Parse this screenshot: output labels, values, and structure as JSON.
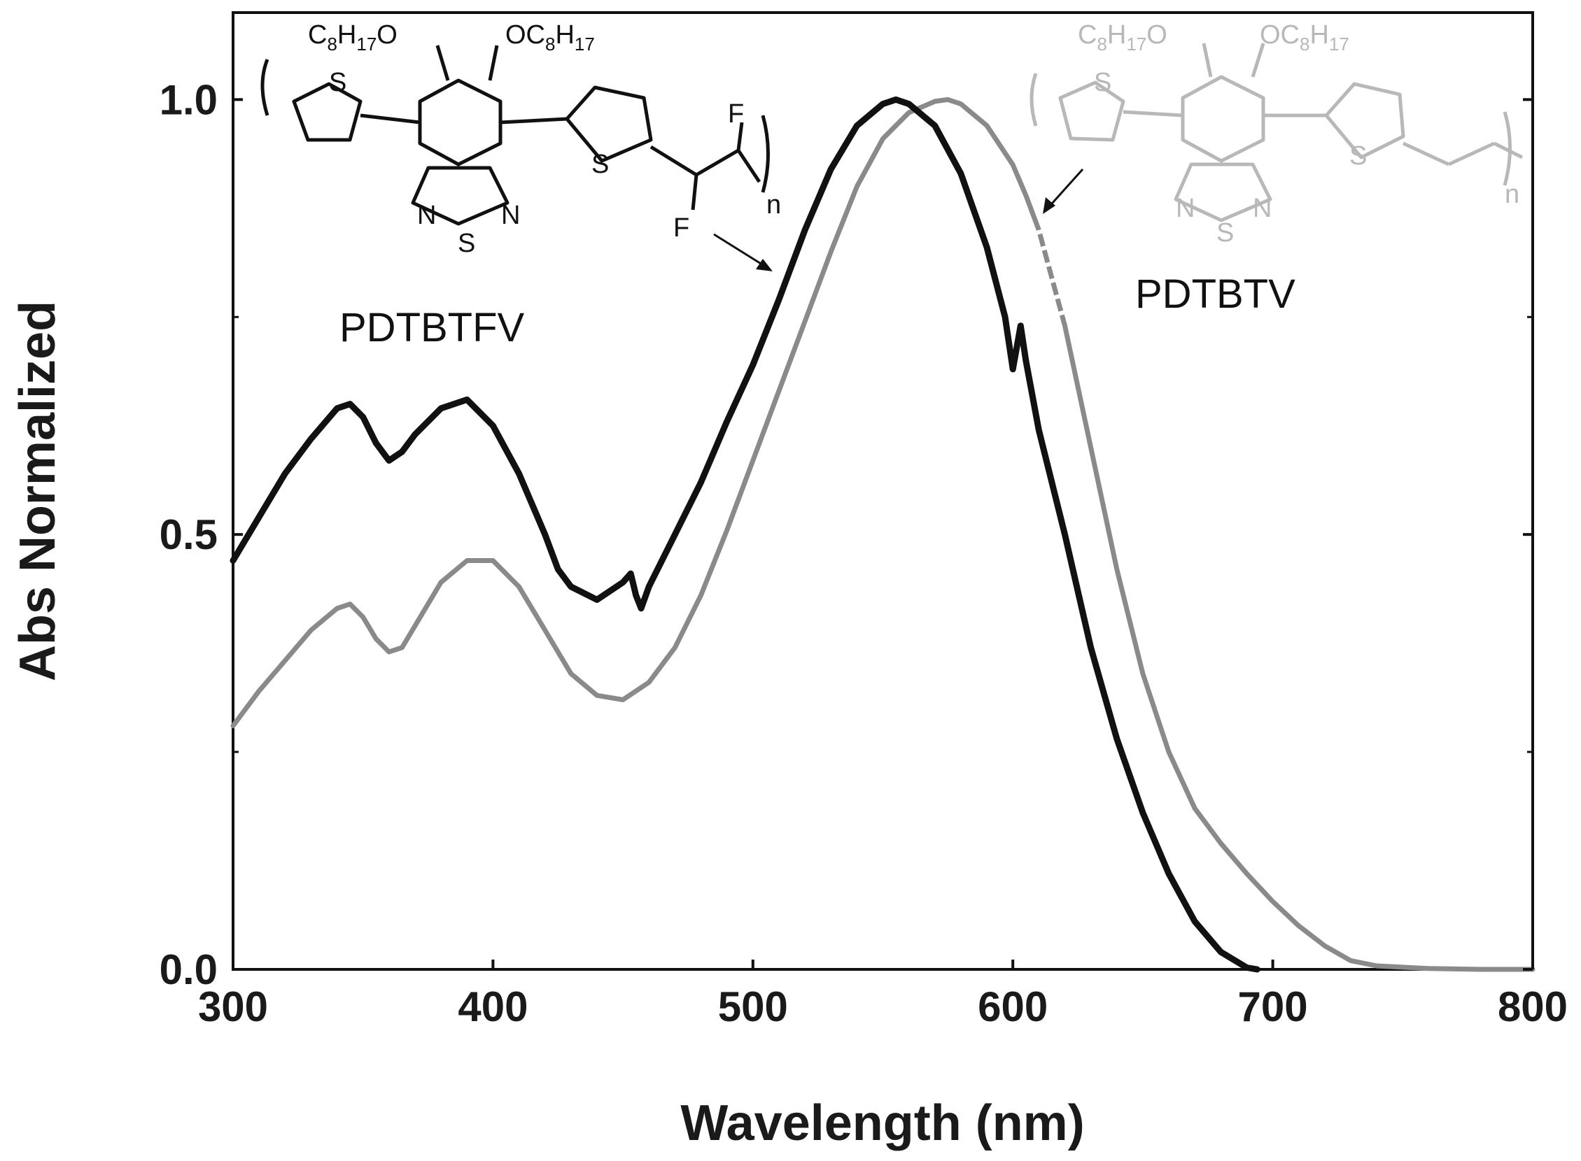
{
  "chart_data": {
    "type": "line",
    "xlabel": "Wavelength (nm)",
    "ylabel": "Abs Normalized",
    "xlim": [
      300,
      800
    ],
    "ylim": [
      0.0,
      1.1
    ],
    "xticks": [
      "300",
      "400",
      "500",
      "600",
      "700",
      "800"
    ],
    "xtick_values": [
      300,
      400,
      500,
      600,
      700,
      800
    ],
    "yticks": [
      "0.0",
      "0.5",
      "1.0"
    ],
    "ytick_values": [
      0.0,
      0.5,
      1.0
    ],
    "grid": false,
    "series": [
      {
        "name": "PDTBTFV",
        "color": "#111111",
        "x": [
          300,
          310,
          320,
          330,
          340,
          345,
          350,
          355,
          360,
          365,
          370,
          380,
          390,
          400,
          410,
          420,
          425,
          430,
          440,
          450,
          453,
          455,
          457,
          460,
          470,
          480,
          490,
          500,
          510,
          520,
          530,
          540,
          550,
          555,
          560,
          570,
          580,
          590,
          597,
          600,
          603,
          605,
          610,
          620,
          630,
          640,
          650,
          660,
          670,
          680,
          690,
          694
        ],
        "y": [
          0.47,
          0.52,
          0.57,
          0.61,
          0.645,
          0.65,
          0.635,
          0.605,
          0.585,
          0.595,
          0.615,
          0.645,
          0.655,
          0.625,
          0.57,
          0.5,
          0.46,
          0.44,
          0.425,
          0.445,
          0.455,
          0.43,
          0.415,
          0.44,
          0.5,
          0.56,
          0.63,
          0.695,
          0.77,
          0.85,
          0.92,
          0.97,
          0.995,
          1.0,
          0.995,
          0.97,
          0.915,
          0.83,
          0.75,
          0.69,
          0.74,
          0.7,
          0.62,
          0.5,
          0.37,
          0.265,
          0.18,
          0.11,
          0.055,
          0.02,
          0.002,
          0.0
        ]
      },
      {
        "name": "PDTBTV",
        "color": "#8a8a8a",
        "x": [
          300,
          310,
          320,
          330,
          340,
          345,
          350,
          355,
          360,
          365,
          370,
          380,
          390,
          400,
          410,
          420,
          430,
          440,
          450,
          460,
          470,
          480,
          490,
          500,
          510,
          520,
          530,
          540,
          550,
          560,
          570,
          575,
          580,
          590,
          600,
          605,
          610,
          620,
          630,
          640,
          650,
          660,
          670,
          680,
          690,
          700,
          710,
          720,
          730,
          740,
          760,
          780,
          800
        ],
        "y": [
          0.28,
          0.32,
          0.355,
          0.39,
          0.415,
          0.42,
          0.405,
          0.38,
          0.365,
          0.37,
          0.395,
          0.445,
          0.47,
          0.47,
          0.44,
          0.39,
          0.34,
          0.315,
          0.31,
          0.33,
          0.37,
          0.43,
          0.505,
          0.585,
          0.665,
          0.745,
          0.825,
          0.9,
          0.955,
          0.985,
          0.998,
          1.0,
          0.995,
          0.97,
          0.925,
          0.89,
          0.85,
          0.74,
          0.6,
          0.46,
          0.34,
          0.25,
          0.185,
          0.145,
          0.11,
          0.078,
          0.05,
          0.027,
          0.01,
          0.004,
          0.001,
          0.0,
          0.0
        ],
        "dashed_ranges": [
          [
            608,
            625
          ]
        ]
      }
    ],
    "annotations": {
      "label_left": "PDTBTFV",
      "label_right": "PDTBTV"
    },
    "structure_text": {
      "left_c8_left": "C",
      "left_c8_left_sub1": "8",
      "left_c8_left_mid": "H",
      "left_c8_left_sub2": "17",
      "left_c8_left_end": "O",
      "left_c8_right": "OC",
      "left_c8_right_sub1": "8",
      "left_c8_right_mid": "H",
      "left_c8_right_sub2": "17",
      "atom_S": "S",
      "atom_N": "N",
      "atom_F": "F",
      "atom_n": "n",
      "right_c8_left": "C",
      "right_c8_left_sub1": "8",
      "right_c8_left_mid": "H",
      "right_c8_left_sub2": "17",
      "right_c8_left_end": "O",
      "right_c8_right": "OC",
      "right_c8_right_sub1": "8",
      "right_c8_right_mid": "H",
      "right_c8_right_sub2": "17"
    }
  }
}
